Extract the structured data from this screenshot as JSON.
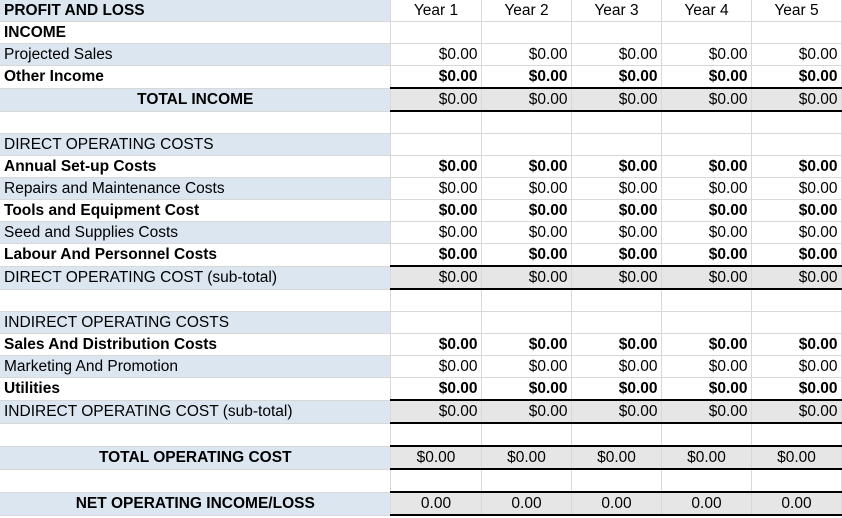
{
  "header": {
    "title": "PROFIT AND LOSS",
    "years": [
      "Year 1",
      "Year 2",
      "Year 3",
      "Year 4",
      "Year 5"
    ]
  },
  "rows": [
    {
      "label": "INCOME",
      "values": [
        "",
        "",
        "",
        "",
        ""
      ],
      "style": "section-bold"
    },
    {
      "label": "Projected Sales",
      "values": [
        "$0.00",
        "$0.00",
        "$0.00",
        "$0.00",
        "$0.00"
      ],
      "style": "normal-blue"
    },
    {
      "label": "Other Income",
      "values": [
        "$0.00",
        "$0.00",
        "$0.00",
        "$0.00",
        "$0.00"
      ],
      "style": "bold-white"
    },
    {
      "label": "TOTAL INCOME",
      "values": [
        "$0.00",
        "$0.00",
        "$0.00",
        "$0.00",
        "$0.00"
      ],
      "style": "total"
    },
    {
      "label": "",
      "values": [
        "",
        "",
        "",
        "",
        ""
      ],
      "style": "empty"
    },
    {
      "label": "DIRECT OPERATING COSTS",
      "values": [
        "",
        "",
        "",
        "",
        ""
      ],
      "style": "section-blue"
    },
    {
      "label": "Annual Set-up Costs",
      "values": [
        "$0.00",
        "$0.00",
        "$0.00",
        "$0.00",
        "$0.00"
      ],
      "style": "bold-white"
    },
    {
      "label": "Repairs and Maintenance Costs",
      "values": [
        "$0.00",
        "$0.00",
        "$0.00",
        "$0.00",
        "$0.00"
      ],
      "style": "normal-blue"
    },
    {
      "label": "Tools and Equipment Cost",
      "values": [
        "$0.00",
        "$0.00",
        "$0.00",
        "$0.00",
        "$0.00"
      ],
      "style": "bold-white"
    },
    {
      "label": "Seed and Supplies Costs",
      "values": [
        "$0.00",
        "$0.00",
        "$0.00",
        "$0.00",
        "$0.00"
      ],
      "style": "normal-blue"
    },
    {
      "label": "Labour And Personnel Costs",
      "values": [
        "$0.00",
        "$0.00",
        "$0.00",
        "$0.00",
        "$0.00"
      ],
      "style": "bold-white"
    },
    {
      "label": "DIRECT OPERATING COST (sub-total)",
      "values": [
        "$0.00",
        "$0.00",
        "$0.00",
        "$0.00",
        "$0.00"
      ],
      "style": "subtotal"
    },
    {
      "label": "",
      "values": [
        "",
        "",
        "",
        "",
        ""
      ],
      "style": "empty"
    },
    {
      "label": "INDIRECT OPERATING COSTS",
      "values": [
        "",
        "",
        "",
        "",
        ""
      ],
      "style": "section-blue"
    },
    {
      "label": "Sales And Distribution Costs",
      "values": [
        "$0.00",
        "$0.00",
        "$0.00",
        "$0.00",
        "$0.00"
      ],
      "style": "bold-white"
    },
    {
      "label": "Marketing And Promotion",
      "values": [
        "$0.00",
        "$0.00",
        "$0.00",
        "$0.00",
        "$0.00"
      ],
      "style": "normal-blue"
    },
    {
      "label": "Utilities",
      "values": [
        "$0.00",
        "$0.00",
        "$0.00",
        "$0.00",
        "$0.00"
      ],
      "style": "bold-white"
    },
    {
      "label": "INDIRECT OPERATING COST (sub-total)",
      "values": [
        "$0.00",
        "$0.00",
        "$0.00",
        "$0.00",
        "$0.00"
      ],
      "style": "subtotal"
    },
    {
      "label": "",
      "values": [
        "",
        "",
        "",
        "",
        ""
      ],
      "style": "empty-tall"
    },
    {
      "label": "TOTAL OPERATING COST",
      "values": [
        "$0.00",
        "$0.00",
        "$0.00",
        "$0.00",
        "$0.00"
      ],
      "style": "grand-total"
    },
    {
      "label": "",
      "values": [
        "",
        "",
        "",
        "",
        ""
      ],
      "style": "empty-tall"
    },
    {
      "label": "NET OPERATING INCOME/LOSS",
      "values": [
        "0.00",
        "0.00",
        "0.00",
        "0.00",
        "0.00"
      ],
      "style": "grand-total"
    }
  ]
}
